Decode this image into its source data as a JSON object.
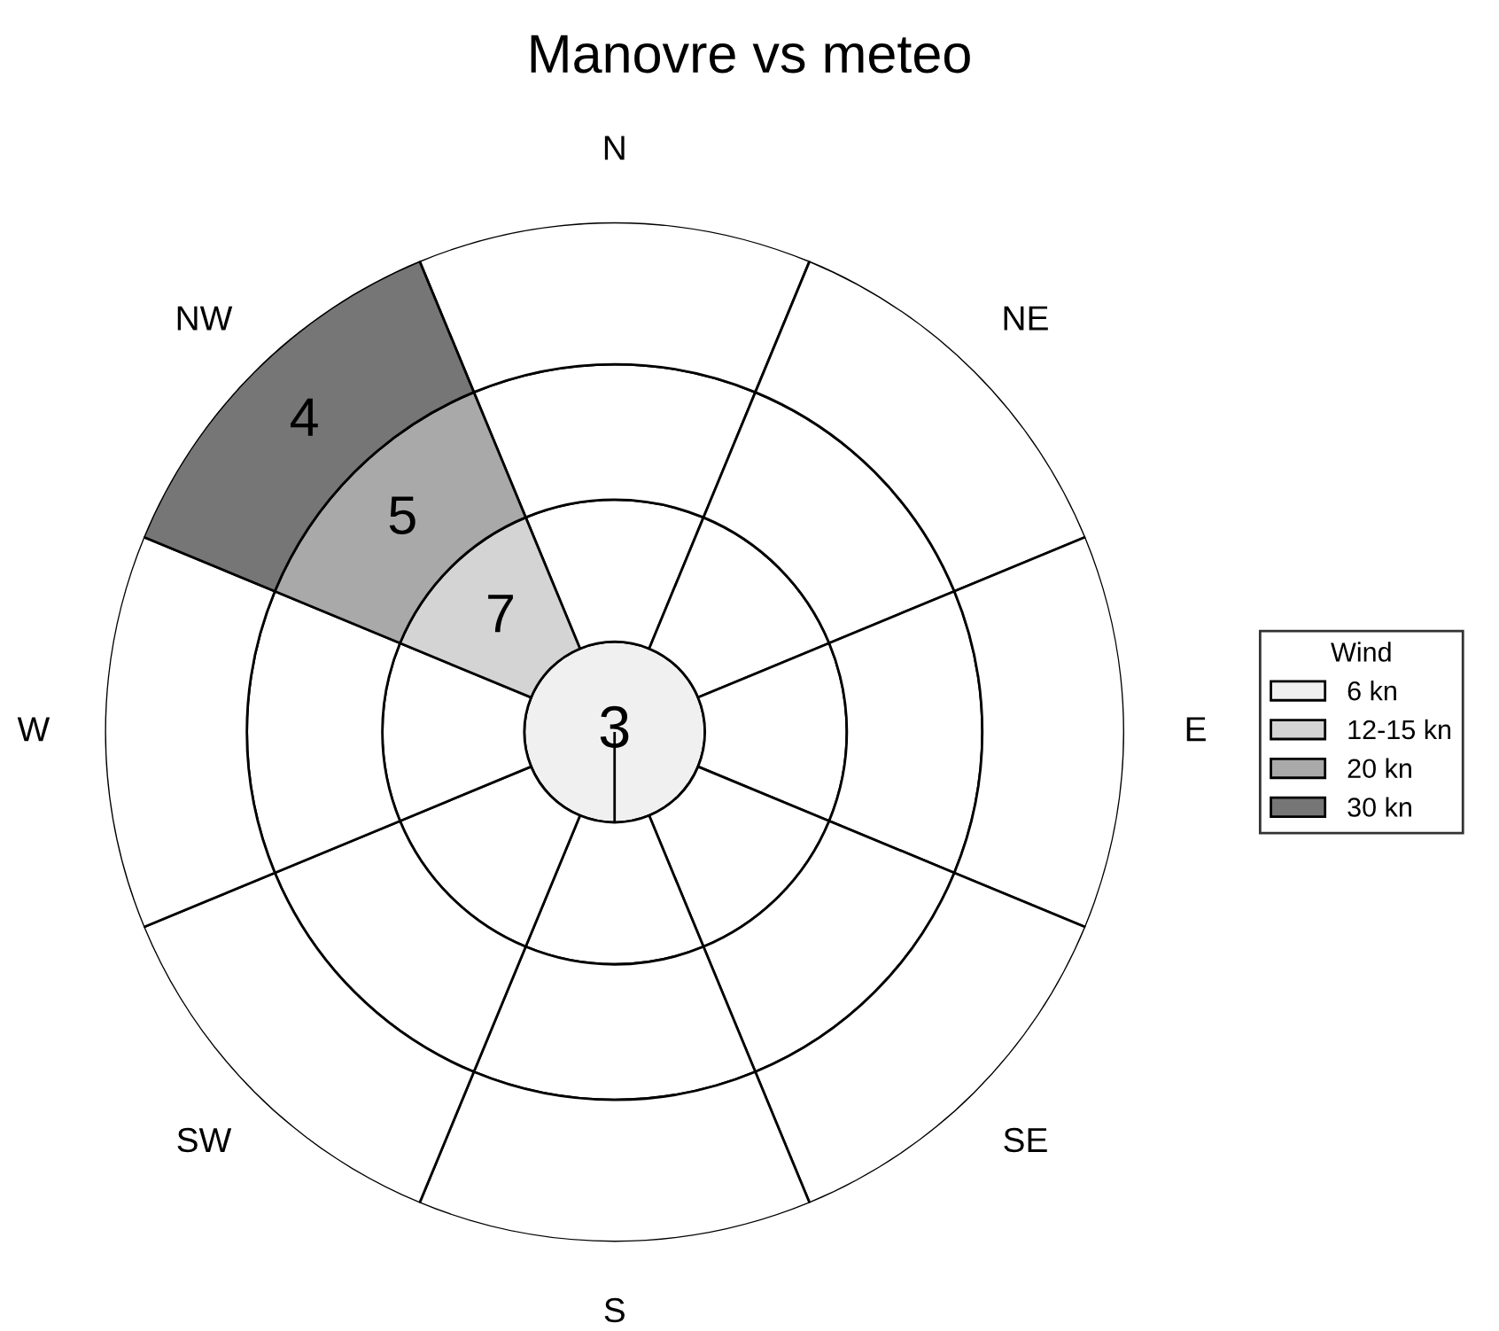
{
  "chart_data": {
    "type": "other",
    "title": "Manovre vs meteo",
    "categories": [
      "N",
      "NE",
      "E",
      "SE",
      "S",
      "SW",
      "W",
      "NW"
    ],
    "series": [
      {
        "name": "6 kn",
        "color": "#f0f0f0",
        "values": [
          null,
          null,
          null,
          null,
          null,
          null,
          null,
          null
        ]
      },
      {
        "name": "12-15 kn",
        "color": "#d4d4d4",
        "values": [
          null,
          null,
          null,
          null,
          null,
          null,
          null,
          7
        ]
      },
      {
        "name": "20 kn",
        "color": "#a9a9a9",
        "values": [
          null,
          null,
          null,
          null,
          null,
          null,
          null,
          5
        ]
      },
      {
        "name": "30 kn",
        "color": "#767676",
        "values": [
          null,
          null,
          null,
          null,
          null,
          null,
          null,
          4
        ]
      }
    ],
    "annotations": [
      "3"
    ],
    "data_labels": true,
    "legend_title": "Wind",
    "legend": "right"
  }
}
